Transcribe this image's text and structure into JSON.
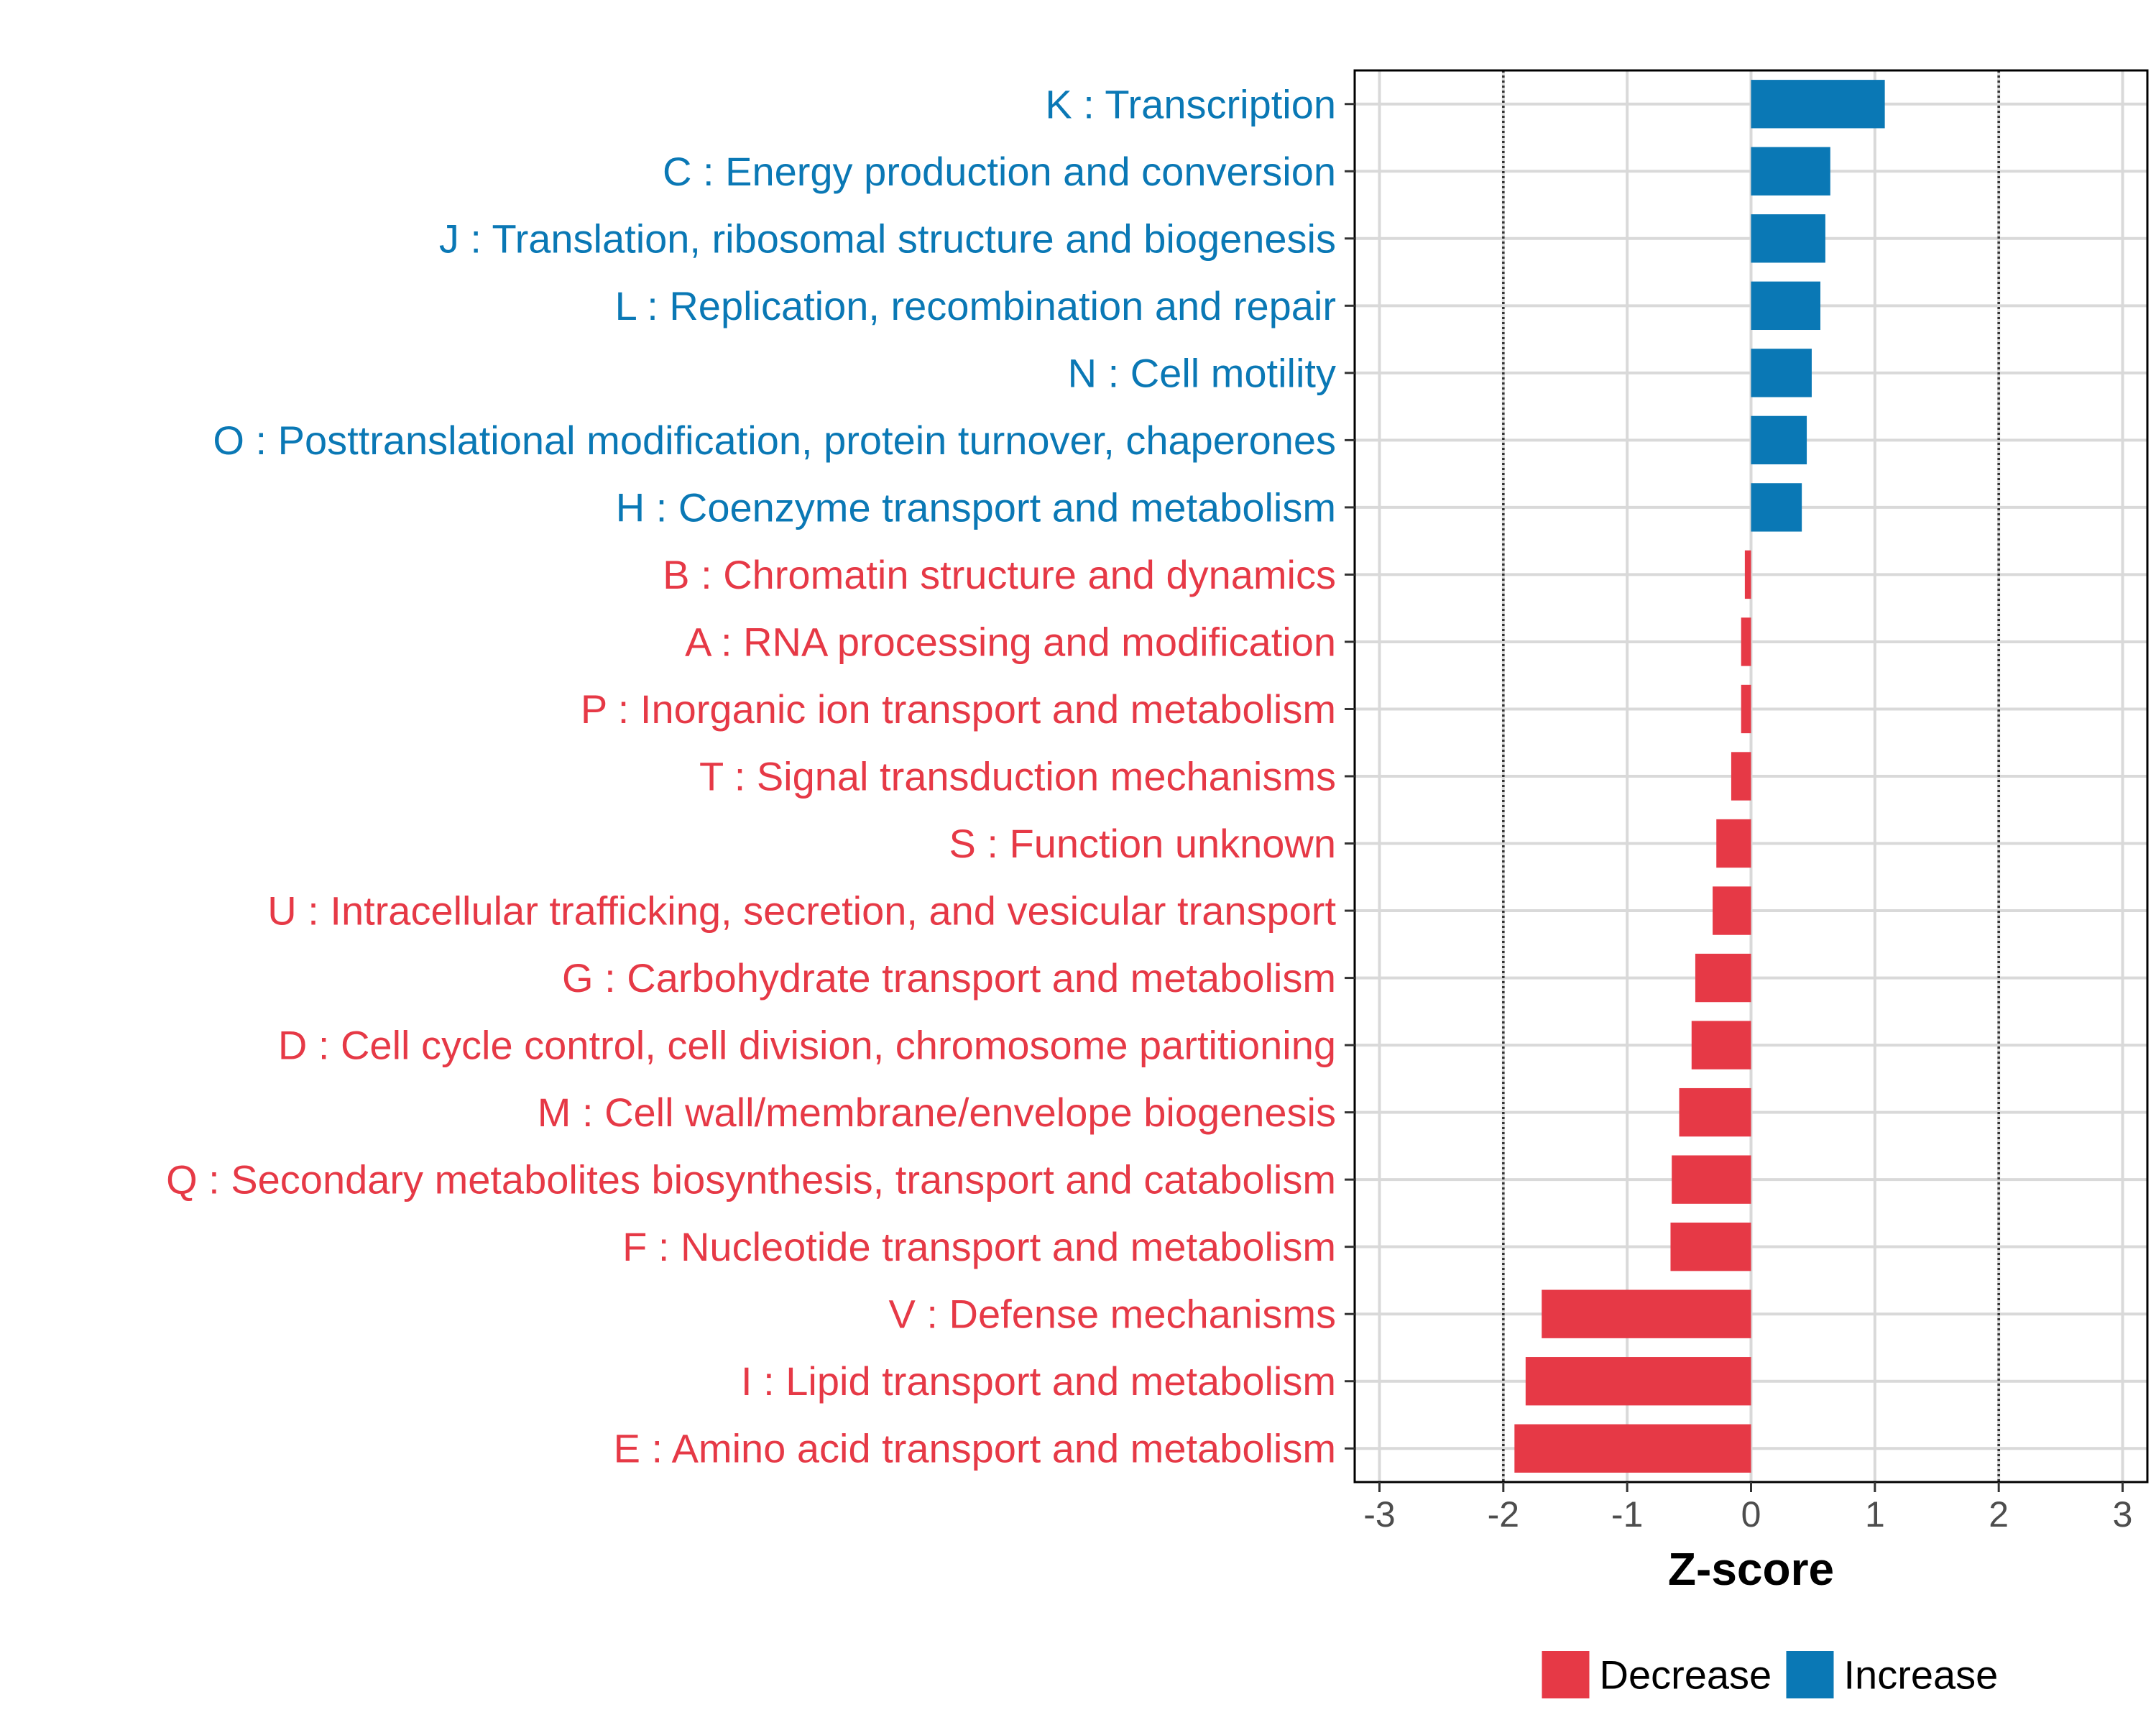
{
  "chart_data": {
    "type": "bar",
    "orientation": "horizontal",
    "xlabel": "Z-score",
    "ylabel": "",
    "xlim": [
      -3.2,
      3.2
    ],
    "xticks": [
      -3,
      -2,
      -1,
      0,
      1,
      2,
      3
    ],
    "xtick_labels": [
      "-3",
      "-2",
      "-1",
      "0",
      "1",
      "2",
      "3"
    ],
    "reference_lines": [
      -2,
      2
    ],
    "colors": {
      "Decrease": "#e63946",
      "Increase": "#0a78b5"
    },
    "categories": [
      "K : Transcription",
      "C : Energy production and conversion",
      "J : Translation, ribosomal structure and biogenesis",
      "L : Replication, recombination and repair",
      "N : Cell motility",
      "O : Posttranslational modification, protein turnover, chaperones",
      "H : Coenzyme transport and metabolism",
      "B : Chromatin structure and dynamics",
      "A : RNA processing and modification",
      "P : Inorganic ion transport and metabolism",
      "T : Signal transduction mechanisms",
      "S : Function unknown",
      "U : Intracellular trafficking, secretion, and vesicular transport",
      "G : Carbohydrate transport and metabolism",
      "D : Cell cycle control, cell division, chromosome partitioning",
      "M : Cell wall/membrane/envelope biogenesis",
      "Q : Secondary metabolites biosynthesis, transport and catabolism",
      "F : Nucleotide transport and metabolism",
      "V : Defense mechanisms",
      "I : Lipid transport and metabolism",
      "E : Amino acid transport and metabolism"
    ],
    "values": [
      1.08,
      0.64,
      0.6,
      0.56,
      0.49,
      0.45,
      0.41,
      -0.05,
      -0.08,
      -0.08,
      -0.16,
      -0.28,
      -0.31,
      -0.45,
      -0.48,
      -0.58,
      -0.64,
      -0.65,
      -1.69,
      -1.82,
      -1.91
    ],
    "groups": [
      "Increase",
      "Increase",
      "Increase",
      "Increase",
      "Increase",
      "Increase",
      "Increase",
      "Decrease",
      "Decrease",
      "Decrease",
      "Decrease",
      "Decrease",
      "Decrease",
      "Decrease",
      "Decrease",
      "Decrease",
      "Decrease",
      "Decrease",
      "Decrease",
      "Decrease",
      "Decrease"
    ],
    "legend": {
      "position": "bottom",
      "entries": [
        {
          "label": "Decrease",
          "color": "#e63946"
        },
        {
          "label": "Increase",
          "color": "#0a78b5"
        }
      ]
    }
  }
}
